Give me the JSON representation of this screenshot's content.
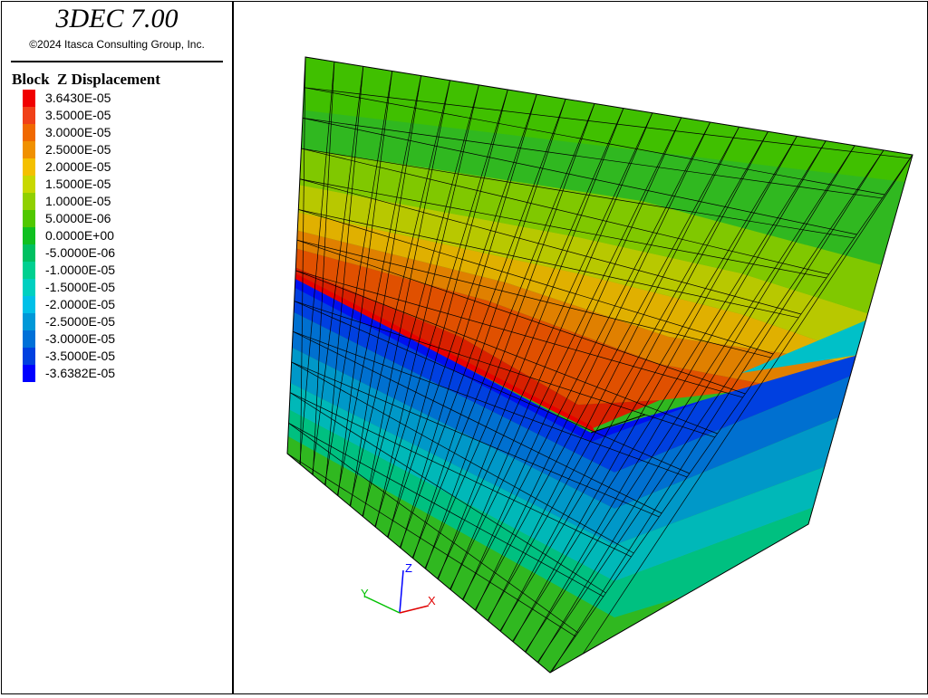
{
  "header": {
    "title": "3DEC 7.00",
    "copyright": "©2024 Itasca Consulting Group, Inc."
  },
  "legend": {
    "title": "Block  Z Displacement",
    "items": [
      {
        "label": "3.6430E-05",
        "color": "#f00000"
      },
      {
        "label": "3.5000E-05",
        "color": "#f04018"
      },
      {
        "label": "3.0000E-05",
        "color": "#f06800"
      },
      {
        "label": "2.5000E-05",
        "color": "#f09000"
      },
      {
        "label": "2.0000E-05",
        "color": "#f4c000"
      },
      {
        "label": "1.5000E-05",
        "color": "#c8d800"
      },
      {
        "label": "1.0000E-05",
        "color": "#90d000"
      },
      {
        "label": "5.0000E-06",
        "color": "#50c800"
      },
      {
        "label": "0.0000E+00",
        "color": "#10c020"
      },
      {
        "label": "-5.0000E-06",
        "color": "#00c060"
      },
      {
        "label": "-1.0000E-05",
        "color": "#00d090"
      },
      {
        "label": "-1.5000E-05",
        "color": "#00d0c0"
      },
      {
        "label": "-2.0000E-05",
        "color": "#00c0e8"
      },
      {
        "label": "-2.5000E-05",
        "color": "#0098d8"
      },
      {
        "label": "-3.0000E-05",
        "color": "#0070d8"
      },
      {
        "label": "-3.5000E-05",
        "color": "#0040e0"
      },
      {
        "label": "-3.6382E-05",
        "color": "#0000ff"
      }
    ]
  },
  "axes": {
    "z": "Z",
    "y": "Y",
    "x": "X"
  }
}
